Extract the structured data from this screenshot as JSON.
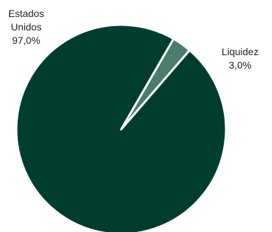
{
  "chart_data": {
    "type": "pie",
    "title": "",
    "slices": [
      {
        "label": "Estados Unidos",
        "label_lines": [
          "Estados",
          "Unidos"
        ],
        "value": 97.0,
        "value_label": "97,0%",
        "color": "#003d2f"
      },
      {
        "label": "Liquidez",
        "label_lines": [
          "Liquidez"
        ],
        "value": 3.0,
        "value_label": "3,0%",
        "color": "#4a7d6c"
      }
    ],
    "start_angle_deg": 60,
    "separator_color": "#ffffff",
    "legend": "none"
  }
}
